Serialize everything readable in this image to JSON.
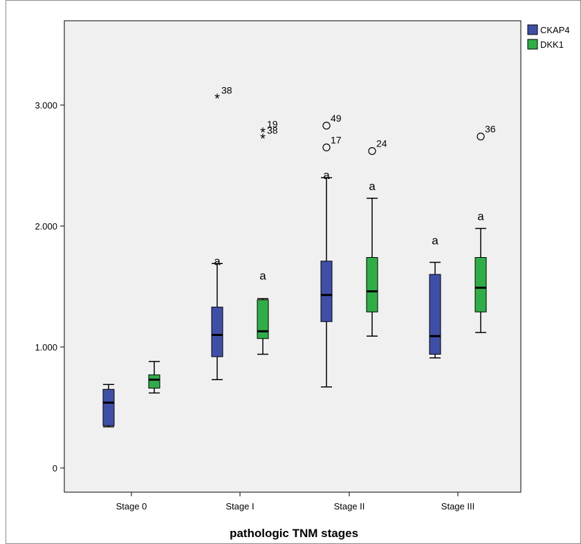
{
  "chart_data": {
    "type": "boxplot",
    "title": "",
    "xlabel": "pathologic TNM stages",
    "ylabel": "",
    "categories": [
      "Stage 0",
      "Stage I",
      "Stage II",
      "Stage III"
    ],
    "ylim": [
      -0.2,
      3.75
    ],
    "yticks": [
      0,
      1,
      2,
      3
    ],
    "ytick_labels": [
      "0",
      "1.000",
      "2.000",
      "3.000"
    ],
    "grid": false,
    "legend_position": "top-right",
    "series": [
      {
        "name": "CKAP4",
        "color": "#3f4fa8",
        "boxes": [
          {
            "whisker_low": 0.34,
            "q1": 0.35,
            "median": 0.54,
            "q3": 0.65,
            "whisker_high": 0.69
          },
          {
            "whisker_low": 0.73,
            "q1": 0.92,
            "median": 1.1,
            "q3": 1.33,
            "whisker_high": 1.69
          },
          {
            "whisker_low": 0.67,
            "q1": 1.21,
            "median": 1.43,
            "q3": 1.71,
            "whisker_high": 2.4
          },
          {
            "whisker_low": 0.91,
            "q1": 0.94,
            "median": 1.09,
            "q3": 1.6,
            "whisker_high": 1.7
          }
        ]
      },
      {
        "name": "DKK1",
        "color": "#2fae47",
        "boxes": [
          {
            "whisker_low": 0.62,
            "q1": 0.66,
            "median": 0.73,
            "q3": 0.77,
            "whisker_high": 0.88
          },
          {
            "whisker_low": 0.94,
            "q1": 1.07,
            "median": 1.13,
            "q3": 1.39,
            "whisker_high": 1.4
          },
          {
            "whisker_low": 1.09,
            "q1": 1.29,
            "median": 1.46,
            "q3": 1.74,
            "whisker_high": 2.23
          },
          {
            "whisker_low": 1.12,
            "q1": 1.29,
            "median": 1.49,
            "q3": 1.74,
            "whisker_high": 1.98
          }
        ]
      }
    ],
    "outliers": [
      {
        "category": 1,
        "series": 0,
        "value": 3.06,
        "marker": "star",
        "label": "38"
      },
      {
        "category": 1,
        "series": 1,
        "value": 2.78,
        "marker": "star",
        "label": "19"
      },
      {
        "category": 1,
        "series": 1,
        "value": 2.73,
        "marker": "star",
        "label": "38"
      },
      {
        "category": 2,
        "series": 0,
        "value": 2.83,
        "marker": "circle",
        "label": "49"
      },
      {
        "category": 2,
        "series": 0,
        "value": 2.65,
        "marker": "circle",
        "label": "17"
      },
      {
        "category": 2,
        "series": 1,
        "value": 2.62,
        "marker": "circle",
        "label": "24"
      },
      {
        "category": 3,
        "series": 1,
        "value": 2.74,
        "marker": "circle",
        "label": "36"
      }
    ],
    "significance_labels": [
      {
        "category": 1,
        "series": 0,
        "value": 1.69,
        "text": "a"
      },
      {
        "category": 1,
        "series": 1,
        "value": 1.57,
        "text": "a"
      },
      {
        "category": 2,
        "series": 0,
        "value": 2.4,
        "text": "a"
      },
      {
        "category": 2,
        "series": 1,
        "value": 2.31,
        "text": "a"
      },
      {
        "category": 3,
        "series": 0,
        "value": 1.86,
        "text": "a"
      },
      {
        "category": 3,
        "series": 1,
        "value": 2.06,
        "text": "a"
      }
    ]
  }
}
